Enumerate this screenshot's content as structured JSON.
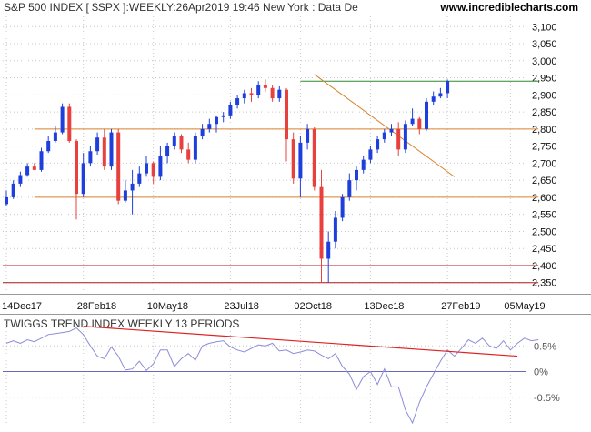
{
  "header": {
    "title": "S&P 500 INDEX [ $SPX ]:WEEKLY:26Apr2019 19:46 New York : Data De",
    "site": "www.incrediblecharts.com"
  },
  "colors": {
    "up": "#1f3fdc",
    "down": "#e8413d",
    "resistance_line": "#2e8b2e",
    "support_lines": "#d9822b",
    "low_lines": "#b01818",
    "trend_line": "#d9822b",
    "indicator_line": "#8c8cd9",
    "indicator_trend": "#dd2222",
    "grid": "#c8c8c8"
  },
  "chart_data": [
    {
      "type": "candlestick",
      "title": "S&P 500 INDEX [ $SPX ]:WEEKLY:26Apr2019 19:46 New York : Data De",
      "x_tick_labels": [
        "14Dec17",
        "28Feb18",
        "10May18",
        "23Jul18",
        "02Oct18",
        "13Dec18",
        "27Feb19",
        "05May19"
      ],
      "x_tick_bars": [
        0,
        11,
        21,
        32,
        42,
        52,
        63,
        72
      ],
      "ylim": [
        2320,
        3130
      ],
      "y_ticks": [
        2350,
        2400,
        2450,
        2500,
        2550,
        2600,
        2650,
        2700,
        2750,
        2800,
        2850,
        2900,
        2950,
        3000,
        3050,
        3100
      ],
      "grid": true,
      "horizontal_lines": [
        {
          "value": 2940,
          "from_bar": 42,
          "to_bar": 76,
          "color_key": "resistance_line"
        },
        {
          "value": 2800,
          "from_bar": 4,
          "to_bar": 76,
          "color_key": "support_lines"
        },
        {
          "value": 2600,
          "from_bar": 4,
          "to_bar": 76,
          "color_key": "support_lines"
        },
        {
          "value": 2400,
          "from_bar": 0,
          "to_bar": 76,
          "color_key": "low_lines"
        },
        {
          "value": 2350,
          "from_bar": 0,
          "to_bar": 76,
          "color_key": "low_lines"
        }
      ],
      "trend_lines": [
        {
          "from": [
            44,
            2960
          ],
          "to": [
            64,
            2660
          ],
          "color_key": "trend_line"
        }
      ],
      "candles": [
        {
          "o": 2580,
          "h": 2620,
          "l": 2575,
          "c": 2600
        },
        {
          "o": 2600,
          "h": 2650,
          "l": 2595,
          "c": 2640
        },
        {
          "o": 2640,
          "h": 2675,
          "l": 2630,
          "c": 2665
        },
        {
          "o": 2665,
          "h": 2700,
          "l": 2660,
          "c": 2690
        },
        {
          "o": 2690,
          "h": 2700,
          "l": 2680,
          "c": 2680
        },
        {
          "o": 2680,
          "h": 2745,
          "l": 2675,
          "c": 2735
        },
        {
          "o": 2735,
          "h": 2780,
          "l": 2730,
          "c": 2765
        },
        {
          "o": 2765,
          "h": 2810,
          "l": 2760,
          "c": 2790
        },
        {
          "o": 2790,
          "h": 2875,
          "l": 2785,
          "c": 2865
        },
        {
          "o": 2865,
          "h": 2875,
          "l": 2760,
          "c": 2765
        },
        {
          "o": 2765,
          "h": 2770,
          "l": 2535,
          "c": 2610
        },
        {
          "o": 2610,
          "h": 2730,
          "l": 2600,
          "c": 2700
        },
        {
          "o": 2700,
          "h": 2750,
          "l": 2690,
          "c": 2735
        },
        {
          "o": 2735,
          "h": 2790,
          "l": 2725,
          "c": 2775
        },
        {
          "o": 2775,
          "h": 2800,
          "l": 2680,
          "c": 2690
        },
        {
          "o": 2690,
          "h": 2800,
          "l": 2680,
          "c": 2790
        },
        {
          "o": 2790,
          "h": 2800,
          "l": 2580,
          "c": 2590
        },
        {
          "o": 2590,
          "h": 2650,
          "l": 2585,
          "c": 2620
        },
        {
          "o": 2620,
          "h": 2680,
          "l": 2550,
          "c": 2640
        },
        {
          "o": 2640,
          "h": 2690,
          "l": 2630,
          "c": 2670
        },
        {
          "o": 2670,
          "h": 2720,
          "l": 2660,
          "c": 2700
        },
        {
          "o": 2700,
          "h": 2705,
          "l": 2640,
          "c": 2660
        },
        {
          "o": 2660,
          "h": 2750,
          "l": 2650,
          "c": 2720
        },
        {
          "o": 2720,
          "h": 2760,
          "l": 2700,
          "c": 2750
        },
        {
          "o": 2750,
          "h": 2790,
          "l": 2740,
          "c": 2780
        },
        {
          "o": 2780,
          "h": 2785,
          "l": 2730,
          "c": 2740
        },
        {
          "o": 2740,
          "h": 2760,
          "l": 2700,
          "c": 2710
        },
        {
          "o": 2710,
          "h": 2790,
          "l": 2700,
          "c": 2780
        },
        {
          "o": 2780,
          "h": 2815,
          "l": 2770,
          "c": 2800
        },
        {
          "o": 2800,
          "h": 2830,
          "l": 2790,
          "c": 2815
        },
        {
          "o": 2815,
          "h": 2840,
          "l": 2790,
          "c": 2835
        },
        {
          "o": 2835,
          "h": 2850,
          "l": 2820,
          "c": 2840
        },
        {
          "o": 2840,
          "h": 2880,
          "l": 2830,
          "c": 2870
        },
        {
          "o": 2870,
          "h": 2900,
          "l": 2860,
          "c": 2890
        },
        {
          "o": 2890,
          "h": 2915,
          "l": 2875,
          "c": 2905
        },
        {
          "o": 2905,
          "h": 2920,
          "l": 2880,
          "c": 2900
        },
        {
          "o": 2900,
          "h": 2940,
          "l": 2890,
          "c": 2930
        },
        {
          "o": 2930,
          "h": 2945,
          "l": 2910,
          "c": 2920
        },
        {
          "o": 2920,
          "h": 2930,
          "l": 2880,
          "c": 2890
        },
        {
          "o": 2890,
          "h": 2925,
          "l": 2880,
          "c": 2915
        },
        {
          "o": 2915,
          "h": 2920,
          "l": 2705,
          "c": 2770
        },
        {
          "o": 2770,
          "h": 2790,
          "l": 2640,
          "c": 2655
        },
        {
          "o": 2655,
          "h": 2780,
          "l": 2600,
          "c": 2760
        },
        {
          "o": 2760,
          "h": 2815,
          "l": 2740,
          "c": 2800
        },
        {
          "o": 2800,
          "h": 2805,
          "l": 2620,
          "c": 2630
        },
        {
          "o": 2630,
          "h": 2680,
          "l": 2350,
          "c": 2420
        },
        {
          "o": 2420,
          "h": 2500,
          "l": 2350,
          "c": 2470
        },
        {
          "o": 2470,
          "h": 2560,
          "l": 2450,
          "c": 2540
        },
        {
          "o": 2540,
          "h": 2610,
          "l": 2530,
          "c": 2600
        },
        {
          "o": 2600,
          "h": 2670,
          "l": 2590,
          "c": 2650
        },
        {
          "o": 2650,
          "h": 2690,
          "l": 2620,
          "c": 2680
        },
        {
          "o": 2680,
          "h": 2720,
          "l": 2670,
          "c": 2710
        },
        {
          "o": 2710,
          "h": 2750,
          "l": 2700,
          "c": 2740
        },
        {
          "o": 2740,
          "h": 2780,
          "l": 2730,
          "c": 2770
        },
        {
          "o": 2770,
          "h": 2800,
          "l": 2760,
          "c": 2790
        },
        {
          "o": 2790,
          "h": 2815,
          "l": 2780,
          "c": 2800
        },
        {
          "o": 2800,
          "h": 2820,
          "l": 2720,
          "c": 2740
        },
        {
          "o": 2740,
          "h": 2825,
          "l": 2730,
          "c": 2815
        },
        {
          "o": 2815,
          "h": 2860,
          "l": 2810,
          "c": 2830
        },
        {
          "o": 2830,
          "h": 2835,
          "l": 2785,
          "c": 2800
        },
        {
          "o": 2800,
          "h": 2890,
          "l": 2795,
          "c": 2880
        },
        {
          "o": 2880,
          "h": 2910,
          "l": 2870,
          "c": 2895
        },
        {
          "o": 2895,
          "h": 2920,
          "l": 2890,
          "c": 2905
        },
        {
          "o": 2905,
          "h": 2945,
          "l": 2890,
          "c": 2940
        }
      ]
    },
    {
      "type": "line",
      "title": "TWIGGS TREND INDEX WEEKLY 13 PERIODS",
      "y_tick_labels": [
        "0.5%",
        "0%",
        "-0.5%"
      ],
      "y_ticks": [
        0.5,
        0.0,
        -0.5
      ],
      "ylim": [
        -1.0,
        1.0
      ],
      "zero_line": true,
      "trend_line": {
        "from": [
          11,
          0.88
        ],
        "to": [
          73,
          0.3
        ],
        "color_key": "indicator_trend"
      },
      "values": [
        0.55,
        0.6,
        0.55,
        0.62,
        0.58,
        0.65,
        0.72,
        0.74,
        0.76,
        0.78,
        0.85,
        0.72,
        0.5,
        0.3,
        0.25,
        0.48,
        0.3,
        0.03,
        0.05,
        0.2,
        0.02,
        0.15,
        0.42,
        0.42,
        0.1,
        0.25,
        0.35,
        0.22,
        0.5,
        0.55,
        0.58,
        0.6,
        0.48,
        0.42,
        0.38,
        0.45,
        0.52,
        0.5,
        0.55,
        0.4,
        0.42,
        0.35,
        0.38,
        0.42,
        0.4,
        0.32,
        0.25,
        0.35,
        0.1,
        -0.05,
        -0.35,
        -0.1,
        0.0,
        -0.25,
        0.05,
        -0.3,
        -0.3,
        -0.75,
        -1.0,
        -0.6,
        -0.3,
        -0.05,
        0.2,
        0.42,
        0.3,
        0.45,
        0.62,
        0.55,
        0.65,
        0.5,
        0.45,
        0.6,
        0.42,
        0.55,
        0.65,
        0.6,
        0.62
      ]
    }
  ]
}
